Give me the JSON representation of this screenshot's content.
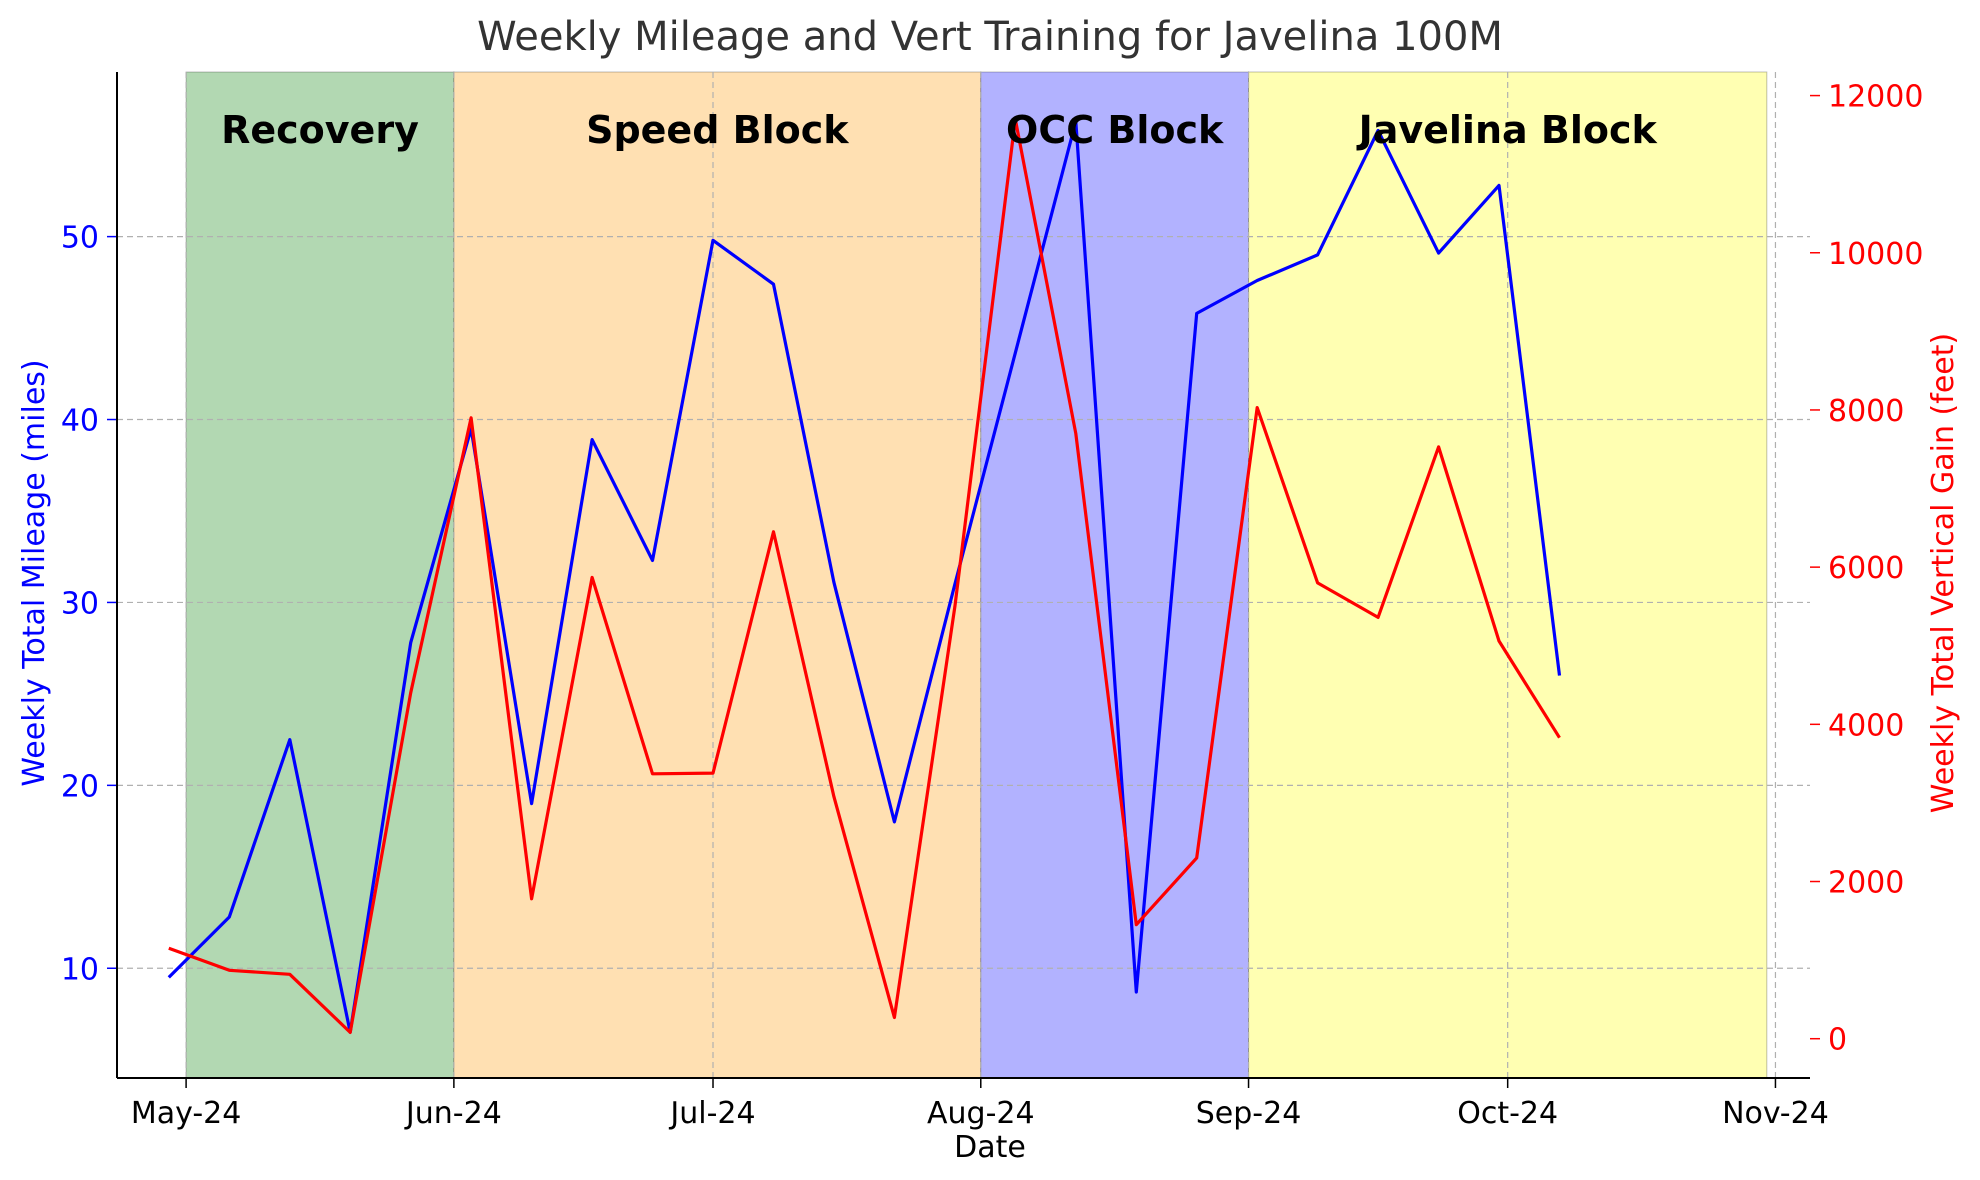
{
  "chart_data": {
    "type": "line",
    "title": "Weekly Mileage and Vert Training for Javelina 100M",
    "xlabel": "Date",
    "ylabel_left": "Weekly Total Mileage (miles)",
    "ylabel_right": "Weekly Total Vertical Gain (feet)",
    "x_ticks": [
      "May-24",
      "Jun-24",
      "Jul-24",
      "Aug-24",
      "Sep-24",
      "Oct-24",
      "Nov-24"
    ],
    "x_range": [
      "2024-04-23",
      "2024-11-05"
    ],
    "ylim_left": [
      4,
      59
    ],
    "ylim_right": [
      -500,
      12300
    ],
    "y_ticks_left": [
      10,
      20,
      30,
      40,
      50
    ],
    "y_ticks_right": [
      0,
      2000,
      4000,
      6000,
      8000,
      10000,
      12000
    ],
    "grid": true,
    "colors": {
      "mileage": "#0000ff",
      "vert": "#ff0000",
      "recovery": "#b2d8b2",
      "speed": "#ffe0b2",
      "occ": "#b2b2ff",
      "javelina": "#ffffb2",
      "title": "#333333"
    },
    "blocks": [
      {
        "label": "Recovery",
        "start": "2024-05-01",
        "end": "2024-06-01",
        "color": "#b2d8b2"
      },
      {
        "label": "Speed Block",
        "start": "2024-06-01",
        "end": "2024-08-01",
        "color": "#ffe0b2"
      },
      {
        "label": "OCC Block",
        "start": "2024-08-01",
        "end": "2024-09-01",
        "color": "#b2b2ff"
      },
      {
        "label": "Javelina Block",
        "start": "2024-09-01",
        "end": "2024-10-31",
        "color": "#ffffb2"
      }
    ],
    "series": [
      {
        "axis": "left",
        "color": "#0000ff",
        "points": [
          [
            "2024-04-29",
            9.5
          ],
          [
            "2024-05-06",
            12.8
          ],
          [
            "2024-05-13",
            22.5
          ],
          [
            "2024-05-20",
            6.5
          ],
          [
            "2024-05-27",
            27.8
          ],
          [
            "2024-06-03",
            39.5
          ],
          [
            "2024-06-10",
            19.0
          ],
          [
            "2024-06-17",
            38.9
          ],
          [
            "2024-06-24",
            32.3
          ],
          [
            "2024-07-01",
            49.8
          ],
          [
            "2024-07-08",
            47.4
          ],
          [
            "2024-07-15",
            31.1
          ],
          [
            "2024-07-22",
            18.0
          ],
          [
            "2024-07-29",
            31.0
          ],
          [
            "2024-08-12",
            56.3
          ],
          [
            "2024-08-19",
            8.7
          ],
          [
            "2024-08-26",
            45.8
          ],
          [
            "2024-09-02",
            47.6
          ],
          [
            "2024-09-09",
            49.0
          ],
          [
            "2024-09-16",
            55.8
          ],
          [
            "2024-09-23",
            49.1
          ],
          [
            "2024-09-30",
            52.8
          ],
          [
            "2024-10-07",
            26.0
          ]
        ]
      },
      {
        "axis": "right",
        "color": "#ff0000",
        "points": [
          [
            "2024-04-29",
            1150
          ],
          [
            "2024-05-06",
            870
          ],
          [
            "2024-05-13",
            820
          ],
          [
            "2024-05-20",
            80
          ],
          [
            "2024-05-27",
            4400
          ],
          [
            "2024-06-03",
            7900
          ],
          [
            "2024-06-10",
            1780
          ],
          [
            "2024-06-17",
            5870
          ],
          [
            "2024-06-24",
            3370
          ],
          [
            "2024-07-01",
            3380
          ],
          [
            "2024-07-08",
            6450
          ],
          [
            "2024-07-15",
            3080
          ],
          [
            "2024-07-22",
            270
          ],
          [
            "2024-07-29",
            5500
          ],
          [
            "2024-08-05",
            11700
          ],
          [
            "2024-08-12",
            7700
          ],
          [
            "2024-08-19",
            1450
          ],
          [
            "2024-08-26",
            2300
          ],
          [
            "2024-09-02",
            8030
          ],
          [
            "2024-09-09",
            5800
          ],
          [
            "2024-09-16",
            5360
          ],
          [
            "2024-09-23",
            7530
          ],
          [
            "2024-09-30",
            5060
          ],
          [
            "2024-10-07",
            3830
          ]
        ]
      }
    ]
  }
}
